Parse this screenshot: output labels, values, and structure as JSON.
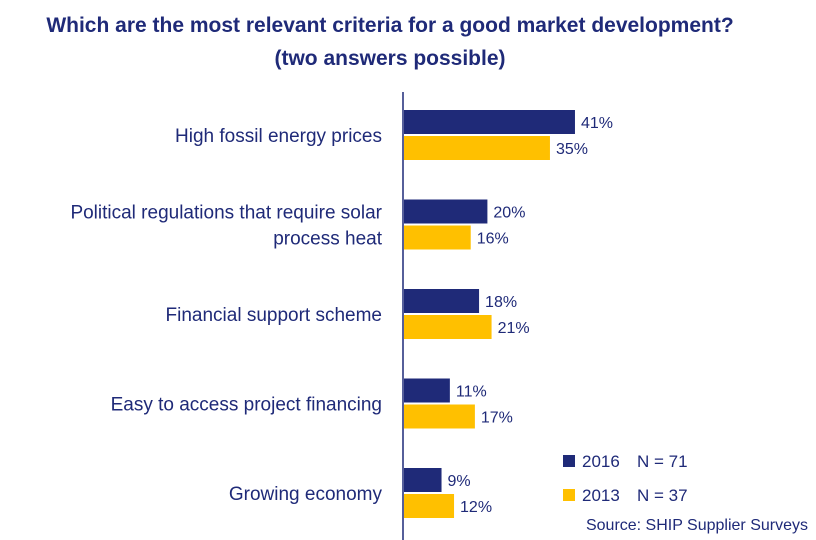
{
  "chart_data": {
    "type": "bar",
    "orientation": "horizontal",
    "title": "Which are the most relevant criteria for a good market development?",
    "subtitle": "(two answers possible)",
    "categories": [
      "High fossil energy prices",
      "Political regulations that require solar process heat",
      "Financial support scheme",
      "Easy to access project financing",
      "Growing economy"
    ],
    "category_lines": [
      [
        "High fossil energy prices"
      ],
      [
        "Political regulations that require solar",
        "process heat"
      ],
      [
        "Financial support scheme"
      ],
      [
        "Easy to access project financing"
      ],
      [
        "Growing economy"
      ]
    ],
    "series": [
      {
        "name": "2016",
        "n_label": "N = 71",
        "color": "#1f2a78",
        "values": [
          41,
          20,
          18,
          11,
          9
        ],
        "labels": [
          "41%",
          "20%",
          "18%",
          "11%",
          "9%"
        ]
      },
      {
        "name": "2013",
        "n_label": "N = 37",
        "color": "#ffc000",
        "values": [
          35,
          16,
          21,
          17,
          12
        ],
        "labels": [
          "35%",
          "16%",
          "21%",
          "17%",
          "12%"
        ]
      }
    ],
    "xlim": [
      0,
      50
    ],
    "grid": false,
    "legend_position": "bottom-right",
    "source": "Source: SHIP Supplier Surveys"
  },
  "colors": {
    "text": "#1f2a78",
    "axis": "#1f2a78"
  }
}
